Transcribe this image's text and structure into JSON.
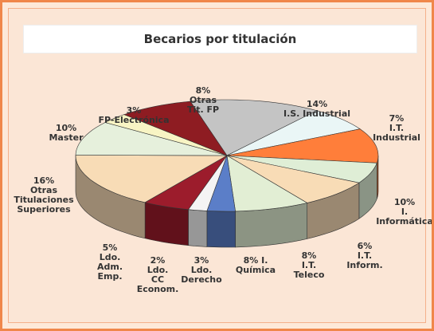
{
  "chart_data": {
    "type": "pie3d",
    "title": "Becarios por titulación",
    "categories": [
      "I.S. Industrial",
      "I.T.\nIndustrial",
      "I.\nInformática",
      "I.T.\nInform.",
      "I.T.\nTeleco",
      "I. Química",
      "Ldo.\nDerecho",
      "Ldo.\nCC\nEconom.",
      "Ldo.\nAdm.\nEmp.",
      "Otras\nTitulaciones\nSuperiores",
      "Master",
      "FP-Electrónica",
      "Otras\nTit. FP"
    ],
    "values": [
      14,
      7,
      10,
      6,
      8,
      8,
      3,
      2,
      5,
      16,
      10,
      3,
      8
    ],
    "value_labels": [
      "14%",
      "7%",
      "10%",
      "6%",
      "8%",
      "8%",
      "3%",
      "2%",
      "5%",
      "16%",
      "10%",
      "3%",
      "8%"
    ],
    "colors": [
      "#c4c4c4",
      "#eaf6f6",
      "#ff7e3a",
      "#dfeed6",
      "#f8dcb6",
      "#e2eed4",
      "#5b7ec8",
      "#f4f4f4",
      "#9c1c2c",
      "#f8dcb6",
      "#e6f0dc",
      "#f8f4c4",
      "#8e1c22"
    ]
  }
}
